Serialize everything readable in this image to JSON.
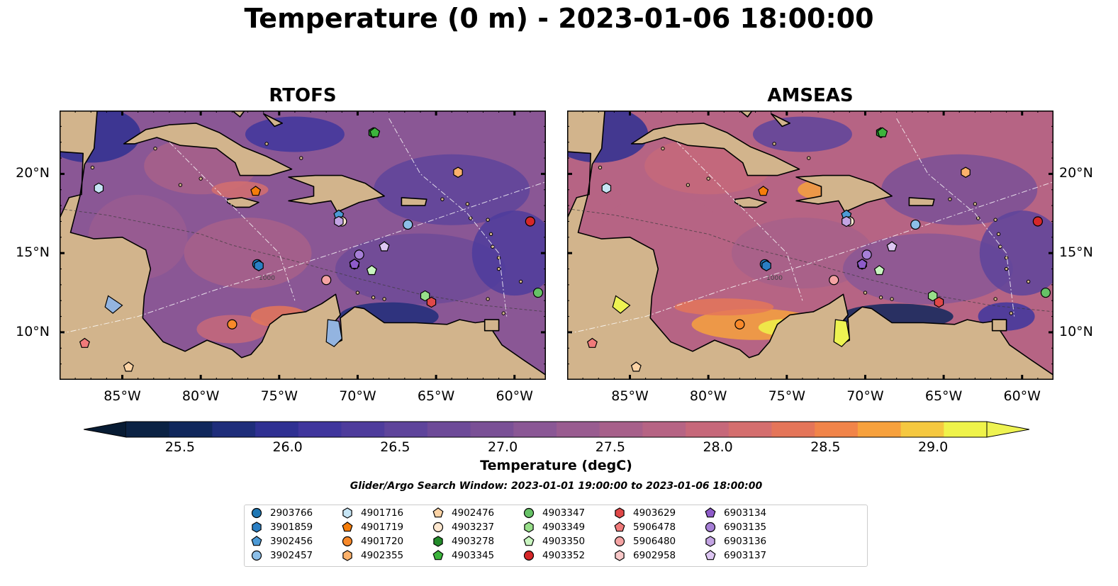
{
  "title": "Temperature (0 m) - 2023-01-06 18:00:00",
  "panels": [
    {
      "title": "RTOFS",
      "model": "rtofs"
    },
    {
      "title": "AMSEAS",
      "model": "amseas"
    }
  ],
  "axes": {
    "lon_extent": [
      -89,
      -58
    ],
    "lat_extent": [
      7,
      24
    ],
    "lon_ticks": [
      "85°W",
      "80°W",
      "75°W",
      "70°W",
      "65°W",
      "60°W"
    ],
    "lat_ticks": [
      "20°N",
      "15°N",
      "10°N"
    ],
    "depth_contour_label": "1000"
  },
  "colorbar": {
    "title": "Temperature (degC)",
    "labels": [
      "25.5",
      "26.0",
      "26.5",
      "27.0",
      "27.5",
      "28.0",
      "28.5",
      "29.0"
    ],
    "range": [
      25.25,
      29.25
    ],
    "step": 0.25,
    "extend": "both",
    "colors": [
      "#0b2244",
      "#10275c",
      "#1e2d7a",
      "#2f3092",
      "#40369d",
      "#4e3c9c",
      "#5e449b",
      "#6d4a98",
      "#7a5096",
      "#8a5795",
      "#995c90",
      "#a7608a",
      "#b66484",
      "#c6687a",
      "#d46e6e",
      "#e47559",
      "#f18449",
      "#f7a13d",
      "#f5c840",
      "#eff34a"
    ],
    "under_color": "#071b33",
    "over_color": "#eef352"
  },
  "search_window": "Glider/Argo Search Window: 2023-01-01 19:00:00 to 2023-01-06 18:00:00",
  "land_color": "#d2b48c",
  "legend": [
    {
      "id": "2903766",
      "color": "#1f77b4",
      "marker": "circle",
      "lon": -76.4,
      "lat": 14.3
    },
    {
      "id": "3901859",
      "color": "#2a7fc4",
      "marker": "hexagon",
      "lon": -76.3,
      "lat": 14.2
    },
    {
      "id": "3902456",
      "color": "#4d9ad6",
      "marker": "pentagon",
      "lon": -71.2,
      "lat": 17.4
    },
    {
      "id": "3902457",
      "color": "#8cbfe8",
      "marker": "circle",
      "lon": -66.8,
      "lat": 16.8
    },
    {
      "id": "4901716",
      "color": "#c6e5f5",
      "marker": "hexagon",
      "lon": -86.5,
      "lat": 19.1
    },
    {
      "id": "4901719",
      "color": "#f57d0a",
      "marker": "pentagon",
      "lon": -76.5,
      "lat": 18.9
    },
    {
      "id": "4901720",
      "color": "#f8892a",
      "marker": "circle",
      "lon": -78.0,
      "lat": 10.5
    },
    {
      "id": "4902355",
      "color": "#fdb26b",
      "marker": "hexagon",
      "lon": -63.6,
      "lat": 20.1
    },
    {
      "id": "4902476",
      "color": "#fcd3a5",
      "marker": "pentagon",
      "lon": -84.6,
      "lat": 7.8
    },
    {
      "id": "4903237",
      "color": "#fde7cf",
      "marker": "circle",
      "lon": -71.0,
      "lat": 17.0
    },
    {
      "id": "4903278",
      "color": "#238b2a",
      "marker": "hexagon",
      "lon": -69.0,
      "lat": 22.6
    },
    {
      "id": "4903345",
      "color": "#3cb43c",
      "marker": "pentagon",
      "lon": -68.9,
      "lat": 22.6
    },
    {
      "id": "4903347",
      "color": "#66c266",
      "marker": "circle",
      "lon": -58.5,
      "lat": 12.5
    },
    {
      "id": "4903349",
      "color": "#98df8a",
      "marker": "hexagon",
      "lon": -65.7,
      "lat": 12.3
    },
    {
      "id": "4903350",
      "color": "#c9f5c0",
      "marker": "pentagon",
      "lon": -69.1,
      "lat": 13.9
    },
    {
      "id": "4903352",
      "color": "#d62728",
      "marker": "circle",
      "lon": -59.0,
      "lat": 17.0
    },
    {
      "id": "4903629",
      "color": "#e04848",
      "marker": "hexagon",
      "lon": -65.3,
      "lat": 11.9
    },
    {
      "id": "5906478",
      "color": "#f07a7a",
      "marker": "pentagon",
      "lon": -87.4,
      "lat": 9.3
    },
    {
      "id": "5906480",
      "color": "#f4a3a3",
      "marker": "circle",
      "lon": -72.0,
      "lat": 13.3
    },
    {
      "id": "6902958",
      "color": "#f8c8c8",
      "marker": "hexagon",
      "lon": -70.2,
      "lat": 14.3
    },
    {
      "id": "6903134",
      "color": "#8e5bc9",
      "marker": "pentagon",
      "lon": -70.2,
      "lat": 14.3
    },
    {
      "id": "6903135",
      "color": "#a67fd6",
      "marker": "circle",
      "lon": -69.9,
      "lat": 14.9
    },
    {
      "id": "6903136",
      "color": "#c3a4e3",
      "marker": "hexagon",
      "lon": -71.2,
      "lat": 17.0
    },
    {
      "id": "6903137",
      "color": "#ddc6f2",
      "marker": "pentagon",
      "lon": -68.3,
      "lat": 15.4
    }
  ]
}
